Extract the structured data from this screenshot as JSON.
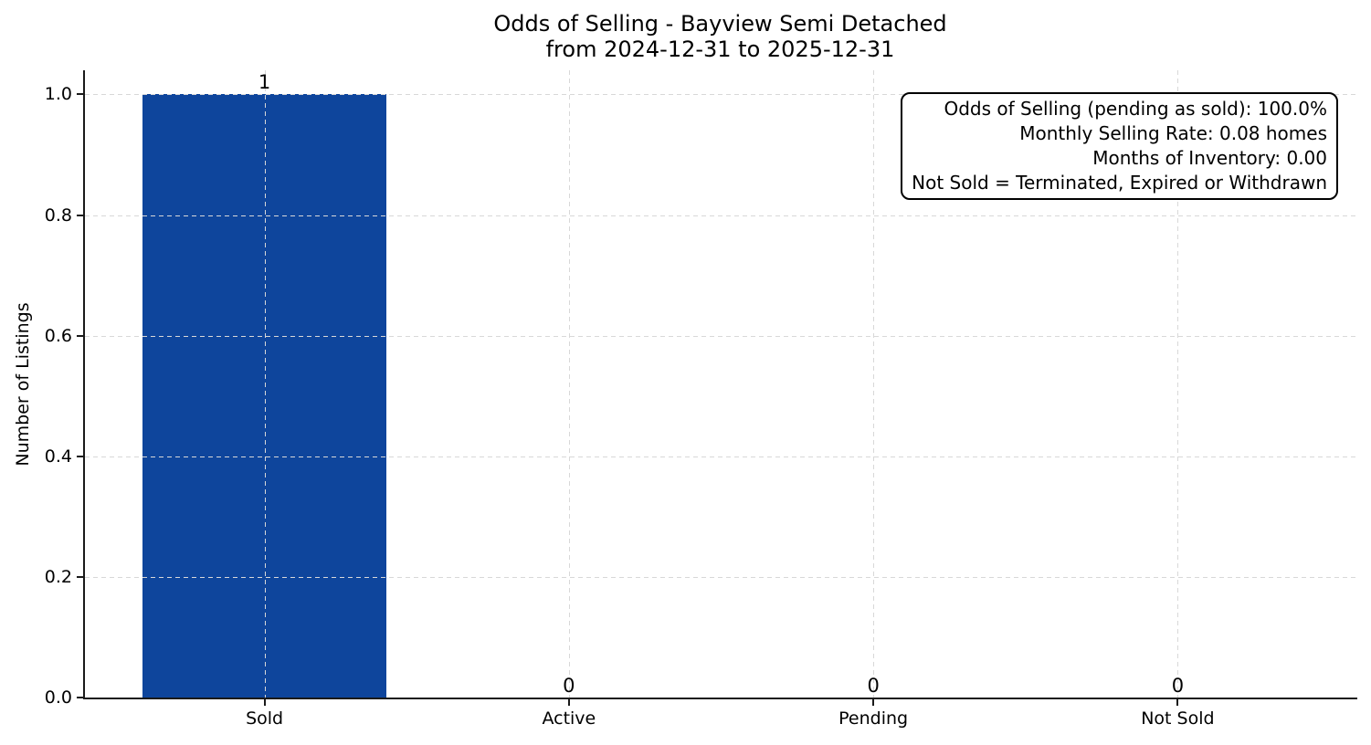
{
  "chart_data": {
    "type": "bar",
    "title": "Odds of Selling - Bayview Semi Detached",
    "subtitle": "from 2024-12-31 to 2025-12-31",
    "categories": [
      "Sold",
      "Active",
      "Pending",
      "Not Sold"
    ],
    "values": [
      1,
      0,
      0,
      0
    ],
    "bar_value_labels": [
      "1",
      "0",
      "0",
      "0"
    ],
    "xlabel": "",
    "ylabel": "Number of Listings",
    "yticks": [
      0,
      0.2,
      0.4,
      0.6,
      0.8,
      1.0
    ],
    "ytick_labels": [
      "0.0",
      "0.2",
      "0.4",
      "0.6",
      "0.8",
      "1.0"
    ],
    "ylim": [
      0,
      1.04
    ],
    "xlim": [
      -0.59,
      3.59
    ],
    "bar_width_units": 0.8,
    "grid": true,
    "grid_style": "dashed",
    "legend_position": "none",
    "bar_color": "#0e459c",
    "grid_color": "#d8d8d8",
    "spine_color": "#1a1a1a",
    "annotation": {
      "lines": [
        "Odds of Selling (pending as sold): 100.0%",
        "Monthly Selling Rate: 0.08 homes",
        "Months of Inventory: 0.00",
        "Not Sold = Terminated, Expired or Withdrawn"
      ]
    }
  }
}
